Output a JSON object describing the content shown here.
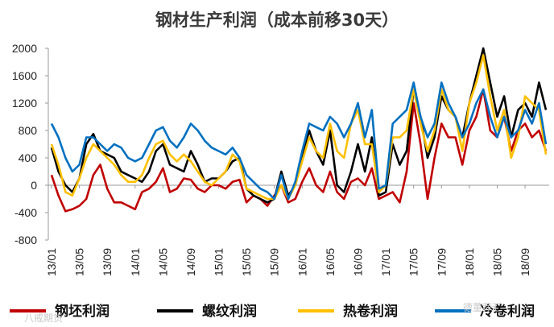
{
  "chart_data": {
    "type": "line",
    "title": "钢材生产利润（成本前移30天）",
    "xlabel": "",
    "ylabel": "",
    "ylim": [
      -800,
      2000
    ],
    "yticks": [
      "2000",
      "1600",
      "1200",
      "800",
      "400",
      "0",
      "-400",
      "-800"
    ],
    "ytick_values": [
      2000,
      1600,
      1200,
      800,
      400,
      0,
      -400,
      -800
    ],
    "x_tick_labels": [
      "13/01",
      "13/05",
      "13/09",
      "14/01",
      "14/05",
      "14/09",
      "15/01",
      "15/05",
      "15/09",
      "16/01",
      "16/05",
      "16/09",
      "17/01",
      "17/05",
      "17/09",
      "18/01",
      "18/05",
      "18/09"
    ],
    "x_range_months": [
      0,
      71
    ],
    "legend_position": "bottom",
    "x_months": [
      0,
      1,
      2,
      3,
      4,
      5,
      6,
      7,
      8,
      9,
      10,
      11,
      12,
      13,
      14,
      15,
      16,
      17,
      18,
      19,
      20,
      21,
      22,
      23,
      24,
      25,
      26,
      27,
      28,
      29,
      30,
      31,
      32,
      33,
      34,
      35,
      36,
      37,
      38,
      39,
      40,
      41,
      42,
      43,
      44,
      45,
      46,
      47,
      48,
      49,
      50,
      51,
      52,
      53,
      54,
      55,
      56,
      57,
      58,
      59,
      60,
      61,
      62,
      63,
      64,
      65,
      66,
      67,
      68,
      69,
      70,
      71
    ],
    "series": [
      {
        "name": "钢坯利润",
        "color": "#c00000",
        "values": [
          150,
          -150,
          -380,
          -350,
          -300,
          -200,
          150,
          300,
          -50,
          -250,
          -250,
          -300,
          -350,
          -100,
          -50,
          50,
          250,
          -100,
          -50,
          100,
          80,
          -50,
          -100,
          0,
          0,
          -50,
          50,
          80,
          -250,
          -150,
          -200,
          -300,
          -150,
          0,
          -250,
          -200,
          50,
          250,
          0,
          -100,
          200,
          -100,
          -200,
          50,
          100,
          0,
          250,
          -200,
          -150,
          -100,
          -250,
          200,
          1200,
          600,
          -200,
          400,
          900,
          700,
          700,
          300,
          800,
          1000,
          1400,
          800,
          700,
          1000,
          500,
          800,
          900,
          700,
          800,
          500
        ]
      },
      {
        "name": "螺纹利润",
        "color": "#000000",
        "values": [
          550,
          200,
          0,
          -100,
          100,
          600,
          750,
          500,
          450,
          400,
          200,
          150,
          100,
          50,
          200,
          500,
          600,
          300,
          250,
          200,
          500,
          300,
          50,
          100,
          100,
          200,
          350,
          400,
          -50,
          -150,
          -200,
          -250,
          -200,
          200,
          -150,
          0,
          400,
          800,
          500,
          300,
          800,
          0,
          -100,
          200,
          600,
          200,
          700,
          -150,
          -100,
          600,
          300,
          500,
          1400,
          1000,
          400,
          700,
          1300,
          1100,
          1000,
          700,
          1200,
          1600,
          2000,
          1500,
          1000,
          1300,
          700,
          1100,
          1200,
          1000,
          1500,
          1100
        ]
      },
      {
        "name": "热卷利润",
        "color": "#ffc000",
        "values": [
          600,
          300,
          -100,
          -150,
          100,
          400,
          600,
          500,
          400,
          300,
          150,
          50,
          50,
          150,
          400,
          600,
          650,
          450,
          350,
          450,
          350,
          200,
          50,
          0,
          100,
          200,
          450,
          350,
          -50,
          -100,
          -150,
          -200,
          -200,
          0,
          -200,
          0,
          350,
          700,
          500,
          400,
          900,
          500,
          400,
          900,
          1100,
          600,
          600,
          -100,
          0,
          700,
          700,
          800,
          1400,
          900,
          500,
          800,
          1400,
          1100,
          1000,
          500,
          1200,
          1500,
          1900,
          1300,
          800,
          1100,
          400,
          700,
          1300,
          1200,
          1100,
          450
        ]
      },
      {
        "name": "冷卷利润",
        "color": "#0070c0",
        "values": [
          900,
          700,
          400,
          200,
          300,
          700,
          700,
          600,
          500,
          600,
          550,
          400,
          350,
          400,
          600,
          800,
          850,
          650,
          550,
          700,
          900,
          800,
          650,
          550,
          500,
          450,
          550,
          400,
          150,
          50,
          -50,
          -100,
          -200,
          150,
          -200,
          50,
          500,
          900,
          850,
          800,
          1000,
          900,
          700,
          900,
          1200,
          700,
          1100,
          -50,
          0,
          900,
          1000,
          1100,
          1500,
          1000,
          700,
          900,
          1500,
          1200,
          1000,
          700,
          900,
          1200,
          1400,
          1000,
          700,
          1000,
          700,
          800,
          1100,
          900,
          1200,
          600
        ]
      }
    ]
  },
  "watermark": "八戒期货",
  "watermark_right": "德董荐汇"
}
